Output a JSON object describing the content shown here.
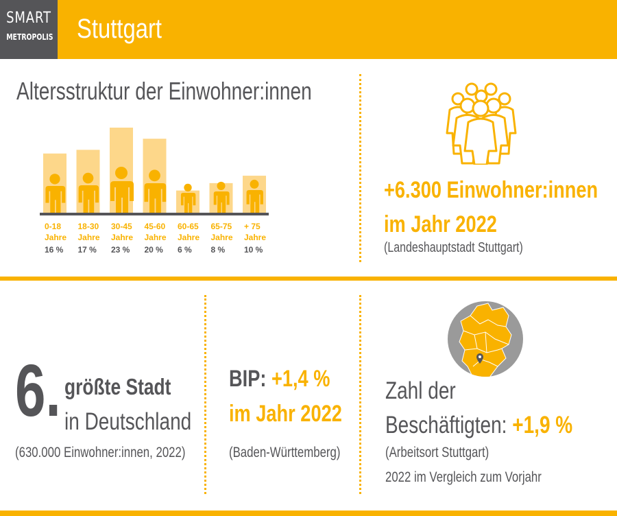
{
  "header": {
    "logo_line1": "SMART",
    "logo_line2": "METROPOLIS",
    "city": "Stuttgart"
  },
  "chart_data": {
    "type": "bar",
    "title": "Altersstruktur der Einwohner:innen",
    "categories": [
      "0-18",
      "18-30",
      "30-45",
      "45-60",
      "60-65",
      "65-75",
      "+ 75"
    ],
    "category_unit": "Jahre",
    "values": [
      16,
      17,
      23,
      20,
      6,
      8,
      10
    ],
    "value_labels": [
      "16 %",
      "17 %",
      "23 %",
      "20 %",
      "6 %",
      "8 %",
      "10 %"
    ],
    "ylim": [
      0,
      23
    ],
    "colors": {
      "bar": "#fdd78a",
      "figure": "#f9b200",
      "baseline": "#555558"
    }
  },
  "population": {
    "line1": "+6.300 Einwohner:innen",
    "line2": "im Jahr 2022",
    "source": "(Landeshauptstadt Stuttgart)",
    "icon": "crowd-icon"
  },
  "rank": {
    "number": "6.",
    "line1": "größte Stadt",
    "line2": "in Deutschland",
    "note": "(630.000 Einwohner:innen, 2022)"
  },
  "bip": {
    "label": "BIP:",
    "value": "+1,4 %",
    "line2": "im Jahr 2022",
    "source": "(Baden-Württemberg)"
  },
  "employment": {
    "line1": "Zahl der",
    "line2_label": "Beschäftigten:",
    "line2_value": "+1,9 %",
    "source": "(Arbeitsort Stuttgart)",
    "note": "2022 im Vergleich zum Vorjahr",
    "icon": "germany-map-globe-icon"
  },
  "colors": {
    "accent": "#f9b200",
    "dark": "#555558",
    "light_bar": "#fdd78a"
  }
}
